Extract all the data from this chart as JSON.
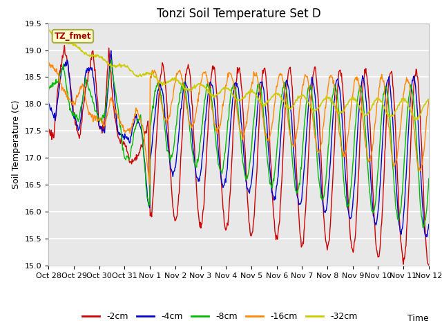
{
  "title": "Tonzi Soil Temperature Set D",
  "xlabel": "Time",
  "ylabel": "Soil Temperature (C)",
  "annotation": "TZ_fmet",
  "ylim": [
    15.0,
    19.5
  ],
  "colors": {
    "-2cm": "#cc0000",
    "-4cm": "#0000cc",
    "-8cm": "#00bb00",
    "-16cm": "#ff8800",
    "-32cm": "#cccc00"
  },
  "tick_labels": [
    "Oct 28",
    "Oct 29",
    "Oct 30",
    "Oct 31",
    "Nov 1",
    "Nov 2",
    "Nov 3",
    "Nov 4",
    "Nov 5",
    "Nov 6",
    "Nov 7",
    "Nov 8",
    "Nov 9",
    "Nov 10",
    "Nov 11",
    "Nov 12"
  ],
  "yticks": [
    15.0,
    15.5,
    16.0,
    16.5,
    17.0,
    17.5,
    18.0,
    18.5,
    19.0,
    19.5
  ],
  "plot_bg_color": "#e8e8e8",
  "fig_bg_color": "#ffffff",
  "title_fontsize": 12,
  "axis_fontsize": 9,
  "tick_fontsize": 8
}
